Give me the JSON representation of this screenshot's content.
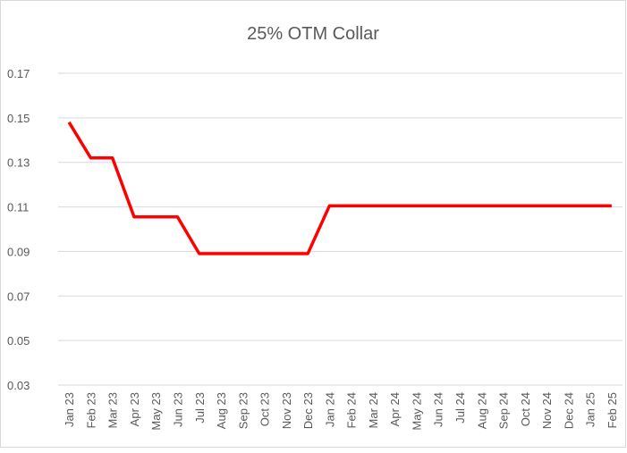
{
  "chart_data": {
    "type": "line",
    "title": "25% OTM Collar",
    "categories": [
      "Jan 23",
      "Feb 23",
      "Mar 23",
      "Apr 23",
      "May 23",
      "Jun 23",
      "Jul 23",
      "Aug 23",
      "Sep 23",
      "Oct 23",
      "Nov 23",
      "Dec 23",
      "Jan 24",
      "Feb 24",
      "Mar 24",
      "Apr 24",
      "May 24",
      "Jun 24",
      "Jul 24",
      "Aug 24",
      "Sep 24",
      "Oct 24",
      "Nov 24",
      "Dec 24",
      "Jan 25",
      "Feb 25"
    ],
    "series": [
      {
        "name": "25% OTM Collar",
        "color": "#ff0000",
        "values": [
          0.148,
          0.132,
          0.132,
          0.1055,
          0.1055,
          0.1055,
          0.089,
          0.089,
          0.089,
          0.089,
          0.089,
          0.089,
          0.1105,
          0.1105,
          0.1105,
          0.1105,
          0.1105,
          0.1105,
          0.1105,
          0.1105,
          0.1105,
          0.1105,
          0.1105,
          0.1105,
          0.1105,
          0.1105
        ]
      }
    ],
    "ylim": [
      0.03,
      0.17
    ],
    "yticks": [
      0.03,
      0.05,
      0.07,
      0.09,
      0.11,
      0.13,
      0.15,
      0.17
    ],
    "grid": true
  }
}
